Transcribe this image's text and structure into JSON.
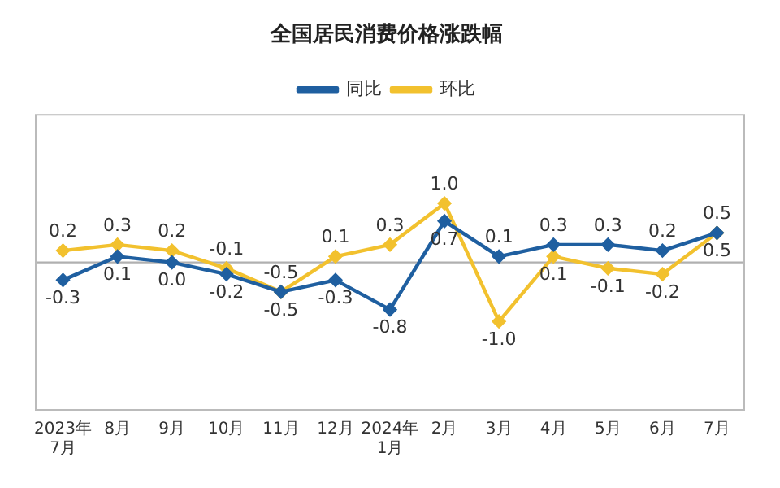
{
  "chart_data": {
    "type": "line",
    "title": "全国居民消费价格涨跌幅",
    "categories": [
      "2023年\n7月",
      "8月",
      "9月",
      "10月",
      "11月",
      "12月",
      "2024年\n1月",
      "2月",
      "3月",
      "4月",
      "5月",
      "6月",
      "7月"
    ],
    "series": [
      {
        "name": "同比",
        "color": "#1f5fa0",
        "values": [
          -0.3,
          0.1,
          0.0,
          -0.2,
          -0.5,
          -0.3,
          -0.8,
          0.7,
          0.1,
          0.3,
          0.3,
          0.2,
          0.5
        ],
        "value_labels": [
          "-0.3",
          "0.1",
          "0.0",
          "-0.2",
          "-0.5",
          "-0.3",
          "-0.8",
          "0.7",
          "0.1",
          "0.3",
          "0.3",
          "0.2",
          "0.5"
        ]
      },
      {
        "name": "环比",
        "color": "#f2c12e",
        "values": [
          0.2,
          0.3,
          0.2,
          -0.1,
          -0.5,
          0.1,
          0.3,
          1.0,
          -1.0,
          0.1,
          -0.1,
          -0.2,
          0.5
        ],
        "value_labels": [
          "0.2",
          "0.3",
          "0.2",
          "-0.1",
          "-0.5",
          "0.1",
          "0.3",
          "1.0",
          "-1.0",
          "0.1",
          "-0.1",
          "-0.2",
          "0.5"
        ]
      }
    ],
    "tick_labels": "x",
    "ref_lines": [
      {
        "axis": "y",
        "value": 0,
        "color": "#b0b0b0"
      }
    ],
    "grid": false,
    "legend": "top",
    "marker": "diamond",
    "line_style": "solid"
  }
}
